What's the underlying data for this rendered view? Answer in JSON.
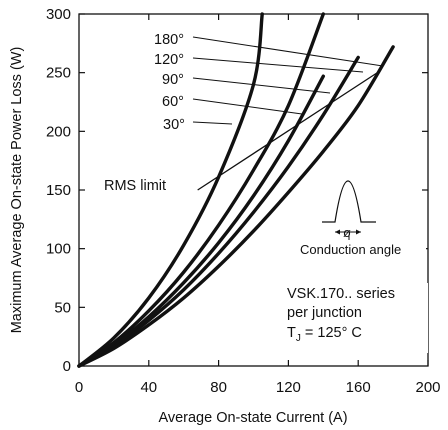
{
  "chart_data": {
    "type": "line",
    "xlabel": "Average On-state Current (A)",
    "ylabel": "Maximum Average On-state Power Loss (W)",
    "xlim": [
      0,
      200
    ],
    "ylim": [
      0,
      300
    ],
    "x_ticks": [
      "0",
      "40",
      "80",
      "120",
      "160",
      "200"
    ],
    "y_ticks": [
      "0",
      "50",
      "100",
      "150",
      "200",
      "250",
      "300"
    ],
    "grid": false,
    "series": [
      {
        "name": "180°",
        "x": [
          0,
          20,
          40,
          60,
          80,
          100,
          120,
          140,
          160,
          180
        ],
        "y": [
          0,
          15,
          35,
          58,
          85,
          115,
          148,
          183,
          222,
          272
        ]
      },
      {
        "name": "120°",
        "x": [
          0,
          20,
          40,
          60,
          80,
          100,
          120,
          140,
          160
        ],
        "y": [
          0,
          17,
          39,
          65,
          96,
          131,
          170,
          214,
          263
        ]
      },
      {
        "name": "90°",
        "x": [
          0,
          20,
          40,
          60,
          80,
          100,
          120,
          140
        ],
        "y": [
          0,
          18,
          42,
          71,
          105,
          145,
          192,
          247
        ]
      },
      {
        "name": "60°",
        "x": [
          0,
          20,
          40,
          60,
          80,
          100,
          120,
          140
        ],
        "y": [
          0,
          20,
          47,
          80,
          120,
          167,
          222,
          300
        ]
      },
      {
        "name": "30°",
        "x": [
          0,
          20,
          40,
          60,
          80,
          100,
          105
        ],
        "y": [
          0,
          24,
          58,
          103,
          161,
          240,
          300
        ]
      }
    ],
    "rms_limit": {
      "label": "RMS limit",
      "x": [
        68,
        172
      ],
      "y": [
        150,
        251
      ]
    },
    "annotations": {
      "series_labels": [
        "180°",
        "120°",
        "90°",
        "60°",
        "30°"
      ],
      "rms_limit_label": "RMS limit",
      "conduction_symbol": "ø",
      "conduction_label": "Conduction angle",
      "device_line1": "VSK.170.. series",
      "device_line2": "per junction",
      "tj_main": "T",
      "tj_sub": "J",
      "tj_rest": " = 125° C"
    }
  }
}
